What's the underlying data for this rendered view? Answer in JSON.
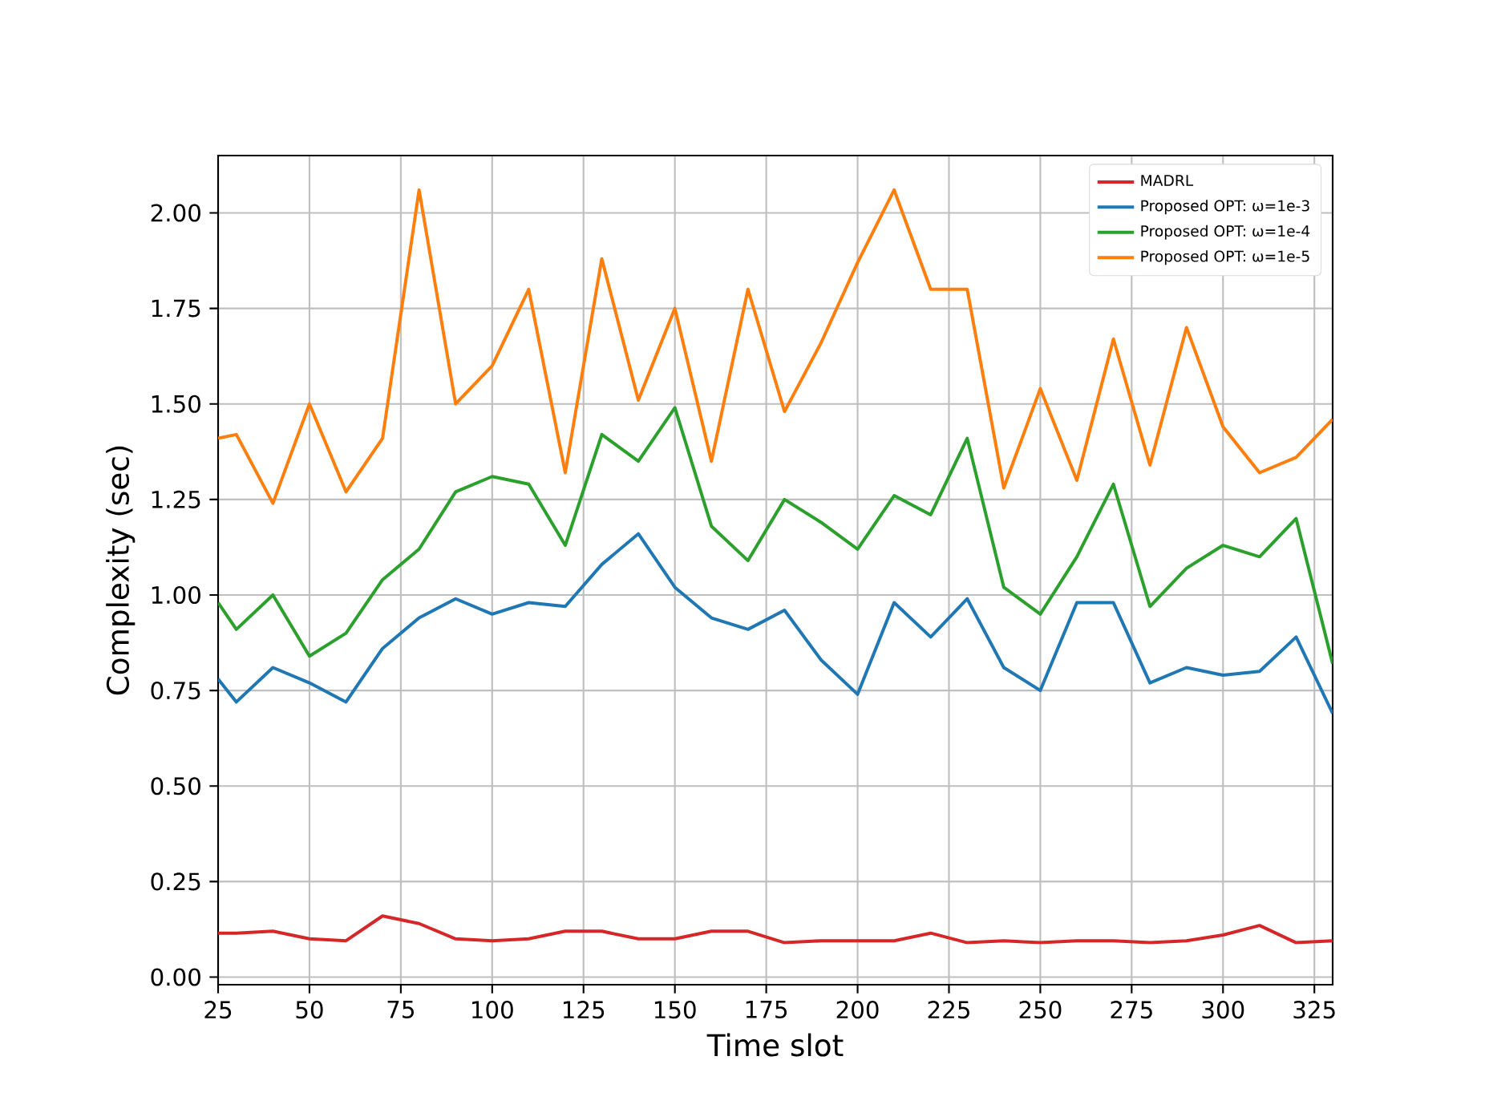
{
  "chart_data": {
    "type": "line",
    "xlabel": "Time slot",
    "ylabel": "Complexity (sec)",
    "x": [
      25,
      30,
      40,
      50,
      60,
      70,
      80,
      90,
      100,
      110,
      120,
      130,
      140,
      150,
      160,
      170,
      180,
      190,
      200,
      210,
      220,
      230,
      240,
      250,
      260,
      270,
      280,
      290,
      300,
      310,
      320,
      330
    ],
    "series": [
      {
        "name": "MADRL",
        "color": "#d62728",
        "values": [
          0.115,
          0.115,
          0.12,
          0.1,
          0.095,
          0.16,
          0.14,
          0.1,
          0.095,
          0.1,
          0.12,
          0.12,
          0.1,
          0.1,
          0.12,
          0.12,
          0.09,
          0.095,
          0.095,
          0.095,
          0.115,
          0.09,
          0.095,
          0.09,
          0.095,
          0.095,
          0.09,
          0.095,
          0.11,
          0.135,
          0.09,
          0.095
        ]
      },
      {
        "name": "Proposed OPT: ω=1e-3",
        "color": "#1f77b4",
        "values": [
          0.78,
          0.72,
          0.81,
          0.77,
          0.72,
          0.86,
          0.94,
          0.99,
          0.95,
          0.98,
          0.97,
          1.08,
          1.16,
          1.02,
          0.94,
          0.91,
          0.96,
          0.83,
          0.74,
          0.98,
          0.89,
          0.99,
          0.81,
          0.75,
          0.98,
          0.98,
          0.77,
          0.81,
          0.79,
          0.8,
          0.89,
          0.69
        ]
      },
      {
        "name": "Proposed OPT: ω=1e-4",
        "color": "#2ca02c",
        "values": [
          0.98,
          0.91,
          1.0,
          0.84,
          0.9,
          1.04,
          1.12,
          1.27,
          1.31,
          1.29,
          1.13,
          1.42,
          1.35,
          1.49,
          1.18,
          1.09,
          1.25,
          1.19,
          1.12,
          1.26,
          1.21,
          1.41,
          1.02,
          0.95,
          1.1,
          1.29,
          0.97,
          1.07,
          1.13,
          1.1,
          1.2,
          0.82
        ]
      },
      {
        "name": "Proposed OPT: ω=1e-5",
        "color": "#ff7f0e",
        "values": [
          1.41,
          1.42,
          1.24,
          1.5,
          1.27,
          1.41,
          2.06,
          1.5,
          1.6,
          1.8,
          1.32,
          1.88,
          1.51,
          1.75,
          1.35,
          1.8,
          1.48,
          1.66,
          1.87,
          2.06,
          1.8,
          1.8,
          1.28,
          1.54,
          1.3,
          1.67,
          1.34,
          1.7,
          1.44,
          1.32,
          1.36,
          1.46
        ]
      }
    ],
    "xlim": [
      25,
      330
    ],
    "ylim": [
      -0.02,
      2.15
    ],
    "xticks": [
      25,
      50,
      75,
      100,
      125,
      150,
      175,
      200,
      225,
      250,
      275,
      300,
      325
    ],
    "yticks": [
      {
        "value": 0,
        "label": "0.00"
      },
      {
        "value": 0.25,
        "label": "0.25"
      },
      {
        "value": 0.5,
        "label": "0.50"
      },
      {
        "value": 0.75,
        "label": "0.75"
      },
      {
        "value": 1,
        "label": "1.00"
      },
      {
        "value": 1.25,
        "label": "1.25"
      },
      {
        "value": 1.5,
        "label": "1.50"
      },
      {
        "value": 1.75,
        "label": "1.75"
      },
      {
        "value": 2,
        "label": "2.00"
      }
    ],
    "grid": true,
    "legend": "top right",
    "marker": "none",
    "line_style": "solid"
  }
}
